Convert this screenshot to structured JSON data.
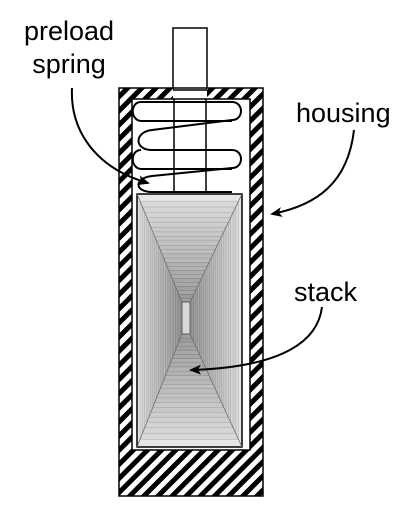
{
  "labels": {
    "preload_spring_line1": "preload",
    "preload_spring_line2": "spring",
    "housing": "housing",
    "stack": "stack"
  },
  "colors": {
    "ink": "#000000",
    "paper": "#ffffff",
    "stack_light": "#ececec",
    "stack_dark": "#8a8a8a"
  },
  "icons": [
    "housing-hatch-pattern",
    "spring-coil",
    "stack-layers"
  ]
}
